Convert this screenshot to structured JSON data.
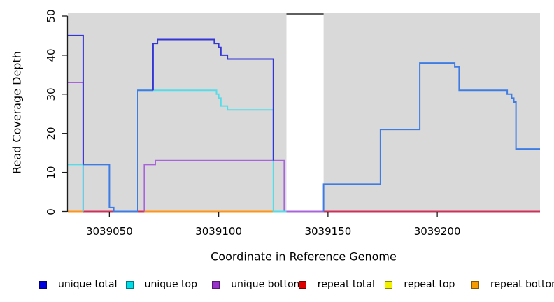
{
  "chart_data": {
    "type": "line",
    "subtype": "step-coverage-plot",
    "xlabel": "Coordinate in Reference Genome",
    "ylabel": "Read Coverage Depth",
    "x_ticks": [
      3039050,
      3039100,
      3039150,
      3039200
    ],
    "y_ticks": [
      0,
      10,
      20,
      30,
      40,
      50
    ],
    "xlim": [
      3039031,
      3039247
    ],
    "ylim": [
      0,
      50
    ],
    "grid": false,
    "plot_bg_color": "#D9D9D9",
    "axis_color": "#1a1a1a",
    "gap_region": {
      "x0": 3039131,
      "x1": 3039148,
      "fill": "#FFFFFF",
      "cap_color": "#5F5F5F"
    },
    "legend_position": "bottom",
    "legend": [
      {
        "label": "unique total",
        "color": "#0000DC"
      },
      {
        "label": "unique top",
        "color": "#00DDE8"
      },
      {
        "label": "unique bottom",
        "color": "#9932CC"
      },
      {
        "label": "repeat total",
        "color": "#DD0000"
      },
      {
        "label": "repeat top",
        "color": "#F2F200"
      },
      {
        "label": "repeat bottom",
        "color": "#F59B00"
      }
    ],
    "series": [
      {
        "name": "repeat-total-seg1",
        "legend": "repeat total",
        "color": "#CE3058",
        "points": [
          [
            3039038,
            0
          ],
          [
            3039066,
            0
          ]
        ]
      },
      {
        "name": "repeat-total-seg2",
        "legend": "repeat total",
        "color": "#CE3058",
        "points": [
          [
            3039148,
            0
          ],
          [
            3039247,
            0
          ]
        ]
      },
      {
        "name": "repeat-bottom-seg1",
        "legend": "repeat bottom",
        "color": "#FF9416",
        "points": [
          [
            3039031,
            0
          ],
          [
            3039038,
            0
          ]
        ]
      },
      {
        "name": "repeat-bottom-seg2",
        "legend": "repeat bottom",
        "color": "#FF9416",
        "points": [
          [
            3039066,
            0
          ],
          [
            3039125,
            0
          ]
        ]
      },
      {
        "name": "unique-top-zero-seg",
        "legend": "unique top",
        "color": "#58CFB0",
        "points": [
          [
            3039125,
            0
          ],
          [
            3039131,
            0
          ]
        ]
      },
      {
        "name": "unique-bottom-seg1",
        "legend": "unique bottom",
        "color": "#A964DC",
        "points": [
          [
            3039031,
            33
          ],
          [
            3039038,
            33
          ],
          [
            3039038,
            0
          ]
        ]
      },
      {
        "name": "unique-bottom-seg2",
        "legend": "unique bottom",
        "color": "#A964DC",
        "points": [
          [
            3039066,
            0
          ],
          [
            3039066,
            12
          ],
          [
            3039071,
            12
          ],
          [
            3039071,
            13
          ],
          [
            3039130,
            13
          ],
          [
            3039130,
            0
          ],
          [
            3039148,
            0
          ]
        ]
      },
      {
        "name": "unique-top-seg1",
        "legend": "unique top",
        "color": "#55DCE8",
        "points": [
          [
            3039031,
            12
          ],
          [
            3039038,
            12
          ],
          [
            3039038,
            0
          ]
        ]
      },
      {
        "name": "unique-top-seg2",
        "legend": "unique top",
        "color": "#55DCE8",
        "points": [
          [
            3039063,
            31
          ],
          [
            3039099,
            31
          ],
          [
            3039099,
            30
          ],
          [
            3039100,
            30
          ],
          [
            3039100,
            29
          ],
          [
            3039101,
            29
          ],
          [
            3039101,
            27
          ],
          [
            3039104,
            27
          ],
          [
            3039104,
            26
          ],
          [
            3039125,
            26
          ],
          [
            3039125,
            0
          ],
          [
            3039131,
            0
          ]
        ]
      },
      {
        "name": "unique-total-azure-seg1",
        "legend": "unique total",
        "color": "#3E7CE4",
        "points": [
          [
            3039038,
            12
          ],
          [
            3039050,
            12
          ],
          [
            3039050,
            1
          ],
          [
            3039052,
            1
          ],
          [
            3039052,
            0
          ],
          [
            3039063,
            0
          ],
          [
            3039063,
            31
          ],
          [
            3039070,
            31
          ]
        ]
      },
      {
        "name": "unique-total-azure-seg2",
        "legend": "unique total",
        "color": "#3E7CE4",
        "points": [
          [
            3039148,
            0
          ],
          [
            3039148,
            7
          ],
          [
            3039174,
            7
          ],
          [
            3039174,
            21
          ],
          [
            3039192,
            21
          ],
          [
            3039192,
            38
          ],
          [
            3039208,
            38
          ],
          [
            3039208,
            37
          ],
          [
            3039210,
            37
          ],
          [
            3039210,
            31
          ],
          [
            3039232,
            31
          ],
          [
            3039232,
            30
          ],
          [
            3039234,
            30
          ],
          [
            3039234,
            29
          ],
          [
            3039235,
            29
          ],
          [
            3039235,
            28
          ],
          [
            3039236,
            28
          ],
          [
            3039236,
            16
          ],
          [
            3039247,
            16
          ]
        ]
      },
      {
        "name": "unique-total-dark-seg1",
        "legend": "unique total",
        "color": "#3535D6",
        "points": [
          [
            3039031,
            45
          ],
          [
            3039038,
            45
          ],
          [
            3039038,
            12
          ]
        ]
      },
      {
        "name": "unique-total-dark-seg2",
        "legend": "unique total",
        "color": "#3535D6",
        "points": [
          [
            3039070,
            31
          ],
          [
            3039070,
            43
          ],
          [
            3039072,
            43
          ],
          [
            3039072,
            44
          ],
          [
            3039098,
            44
          ],
          [
            3039098,
            43
          ],
          [
            3039100,
            43
          ],
          [
            3039100,
            42
          ],
          [
            3039101,
            42
          ],
          [
            3039101,
            40
          ],
          [
            3039104,
            40
          ],
          [
            3039104,
            39
          ],
          [
            3039125,
            39
          ],
          [
            3039125,
            13
          ]
        ]
      }
    ]
  },
  "layout_text": {
    "xlabel": "Coordinate in Reference Genome",
    "ylabel": "Read Coverage Depth"
  }
}
